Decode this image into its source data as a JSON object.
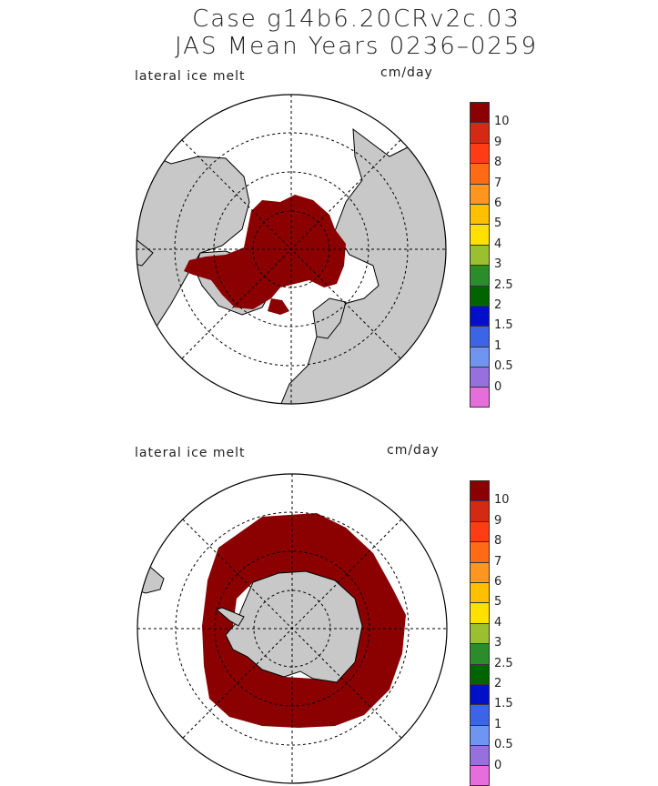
{
  "figure": {
    "title_line1": "Case g14b6.20CRv2c.03",
    "title_line2": "JAS Mean    Years 0236–0259"
  },
  "panels": [
    {
      "id": "north",
      "variable_label": "lateral ice melt",
      "units_label": "cm/day",
      "hemisphere": "Northern",
      "field_color": "#8b0000",
      "land_color": "#c8c8c8"
    },
    {
      "id": "south",
      "variable_label": "lateral ice melt",
      "units_label": "cm/day",
      "hemisphere": "Southern",
      "field_color": "#8b0000",
      "land_color": "#c8c8c8"
    }
  ],
  "colorbar": {
    "labels": [
      "10",
      "9",
      "8",
      "7",
      "6",
      "5",
      "4",
      "3",
      "2.5",
      "2",
      "1.5",
      "1",
      "0.5",
      "0"
    ],
    "colors": [
      "#8b0000",
      "#d42a14",
      "#ff3c14",
      "#ff6a14",
      "#ff9620",
      "#ffc000",
      "#ffe000",
      "#9ac030",
      "#2a8c2a",
      "#006400",
      "#0010c8",
      "#3c64e6",
      "#6e96f0",
      "#9670dc",
      "#e66edc"
    ]
  }
}
